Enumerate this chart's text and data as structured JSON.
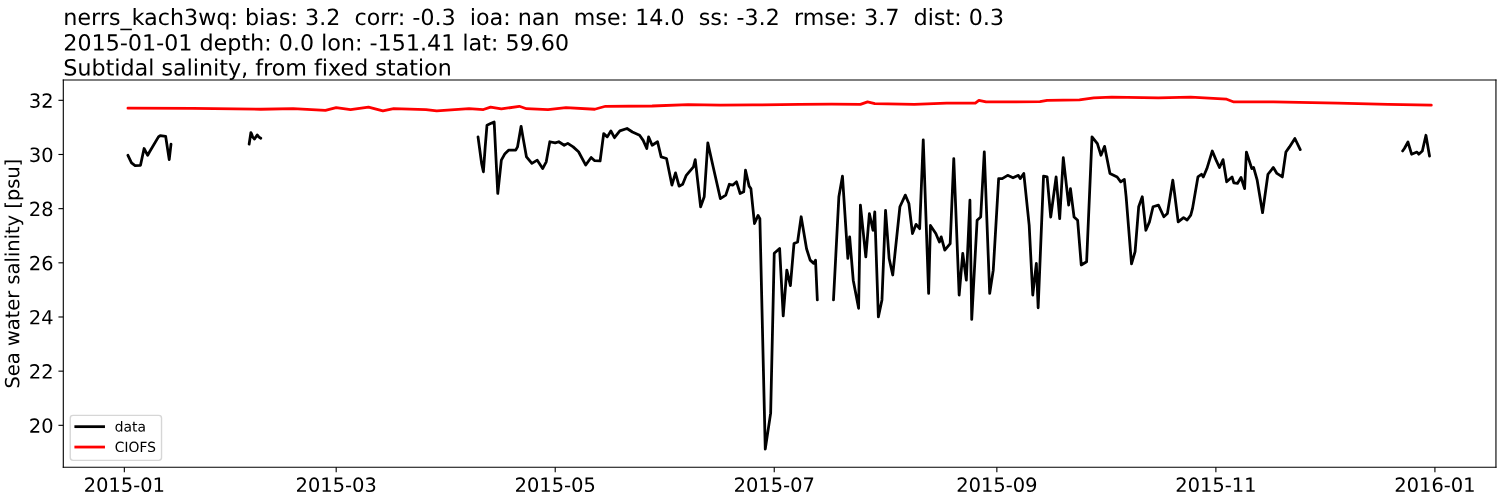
{
  "chart_data": {
    "type": "line",
    "title": "nerrs_kach3wq: bias: 3.2  corr: -0.3  ioa: nan  mse: 14.0  ss: -3.2  rmse: 3.7  dist: 0.3\n2015-01-01 depth: 0.0 lon: -151.41 lat: 59.60\nSubtidal salinity, from fixed station",
    "ylabel": "Sea water salinity [psu]",
    "xlim": [
      "2014-12-15",
      "2016-01-18"
    ],
    "xticks": [
      "2015-01",
      "2015-03",
      "2015-05",
      "2015-07",
      "2015-09",
      "2015-11",
      "2016-01"
    ],
    "ylim": [
      18.45,
      32.75
    ],
    "yticks": [
      20,
      22,
      24,
      26,
      28,
      30,
      32
    ],
    "legend": "bottom left",
    "series": [
      {
        "name": "data",
        "color": "#000000",
        "x": [
          "2015-01-02",
          "2015-01-03",
          "2015-01-04",
          "2015-01-05T12:00",
          "2015-01-06T12:00",
          "2015-01-07T12:00",
          "2015-01-08",
          "2015-01-10T12:00",
          "2015-01-11",
          "2015-01-12T12:00",
          "2015-01-13T12:00",
          "2015-01-14",
          "2015-01-25",
          "2015-02-04T18:00",
          "2015-02-05T06:00",
          "2015-02-05T12:00",
          "2015-02-05T18:00",
          "2015-02-06T06:00",
          "2015-02-07",
          "2015-02-07T12:00",
          "2015-02-08",
          "2015-03-01",
          "2015-04-09T12:00",
          "2015-04-10T12:00",
          "2015-04-11",
          "2015-04-11T12:00",
          "2015-04-12",
          "2015-04-13",
          "2015-04-14",
          "2015-04-15",
          "2015-04-16",
          "2015-04-17",
          "2015-04-18",
          "2015-04-20",
          "2015-04-20T12:00",
          "2015-04-21T12:00",
          "2015-04-22",
          "2015-04-23",
          "2015-04-24T12:00",
          "2015-04-26",
          "2015-04-27T12:00",
          "2015-04-28T12:00",
          "2015-04-29T12:00",
          "2015-05-01",
          "2015-05-02",
          "2015-05-03T12:00",
          "2015-05-04T12:00",
          "2015-05-06",
          "2015-05-07T12:00",
          "2015-05-09T12:00",
          "2015-05-11",
          "2015-05-12",
          "2015-05-13T12:00",
          "2015-05-14T12:00",
          "2015-05-15T12:00",
          "2015-05-16T12:00",
          "2015-05-17T12:00",
          "2015-05-19",
          "2015-05-21",
          "2015-05-22T12:00",
          "2015-05-24T12:00",
          "2015-05-25T12:00",
          "2015-05-26T12:00",
          "2015-05-27",
          "2015-05-28",
          "2015-05-29T12:00",
          "2015-05-30T12:00",
          "2015-06-01",
          "2015-06-02T12:00",
          "2015-06-03T12:00",
          "2015-06-04T12:00",
          "2015-06-05T12:00",
          "2015-06-06T12:00",
          "2015-06-08T12:00",
          "2015-06-09",
          "2015-06-10T12:00",
          "2015-06-11T12:00",
          "2015-06-12T12:00",
          "2015-06-14",
          "2015-06-16",
          "2015-06-17T12:00",
          "2015-06-18T12:00",
          "2015-06-19T12:00",
          "2015-06-20T12:00",
          "2015-06-21T12:00",
          "2015-06-22T12:00",
          "2015-06-23",
          "2015-06-24",
          "2015-06-24T12:00",
          "2015-06-25T12:00",
          "2015-06-26T12:00",
          "2015-06-27",
          "2015-06-28T12:00",
          "2015-06-30",
          "2015-07-01",
          "2015-07-02T12:00",
          "2015-07-03T12:00",
          "2015-07-04T12:00",
          "2015-07-05T12:00",
          "2015-07-06T12:00",
          "2015-07-07T12:00",
          "2015-07-08T12:00",
          "2015-07-10",
          "2015-07-11",
          "2015-07-12",
          "2015-07-12T12:00",
          "2015-07-13",
          "2015-07-15",
          "2015-07-17T12:00",
          "2015-07-19",
          "2015-07-20",
          "2015-07-21T12:00",
          "2015-07-22",
          "2015-07-23",
          "2015-07-24T12:00",
          "2015-07-25",
          "2015-07-26T12:00",
          "2015-07-27T12:00",
          "2015-07-28T12:00",
          "2015-07-29",
          "2015-07-30",
          "2015-07-31",
          "2015-08-01",
          "2015-08-02",
          "2015-08-03",
          "2015-08-05",
          "2015-08-06T12:00",
          "2015-08-07T12:00",
          "2015-08-08T12:00",
          "2015-08-09T12:00",
          "2015-08-10T12:00",
          "2015-08-11T12:00",
          "2015-08-13",
          "2015-08-13T12:00",
          "2015-08-15",
          "2015-08-16",
          "2015-08-16T12:00",
          "2015-08-17T12:00",
          "2015-08-19",
          "2015-08-20",
          "2015-08-21T12:00",
          "2015-08-22T12:00",
          "2015-08-23T12:00",
          "2015-08-24T12:00",
          "2015-08-25",
          "2015-08-26T12:00",
          "2015-08-27T12:00",
          "2015-08-28T12:00",
          "2015-08-30",
          "2015-08-31",
          "2015-09-01T12:00",
          "2015-09-02T12:00",
          "2015-09-04",
          "2015-09-05T12:00",
          "2015-09-07",
          "2015-09-07T12:00",
          "2015-09-08T12:00",
          "2015-09-10",
          "2015-09-11",
          "2015-09-12",
          "2015-09-12T12:00",
          "2015-09-14",
          "2015-09-15",
          "2015-09-16",
          "2015-09-17T12:00",
          "2015-09-18T12:00",
          "2015-09-19T12:00",
          "2015-09-21",
          "2015-09-21T12:00",
          "2015-09-22T12:00",
          "2015-09-23T12:00",
          "2015-09-24T12:00",
          "2015-09-26",
          "2015-09-27T12:00",
          "2015-09-29",
          "2015-09-30",
          "2015-10-01",
          "2015-10-02T12:00",
          "2015-10-04T12:00",
          "2015-10-05T12:00",
          "2015-10-06T12:00",
          "2015-10-07",
          "2015-10-08T12:00",
          "2015-10-09T12:00",
          "2015-10-10T12:00",
          "2015-10-11T12:00",
          "2015-10-12T12:00",
          "2015-10-13T12:00",
          "2015-10-14T12:00",
          "2015-10-16",
          "2015-10-17T12:00",
          "2015-10-18T12:00",
          "2015-10-20",
          "2015-10-20T12:00",
          "2015-10-21T12:00",
          "2015-10-23",
          "2015-10-24",
          "2015-10-25",
          "2015-10-25T12:00",
          "2015-10-27",
          "2015-10-28",
          "2015-10-28T12:00",
          "2015-10-29T12:00",
          "2015-10-31",
          "2015-11-01",
          "2015-11-02",
          "2015-11-03",
          "2015-11-04",
          "2015-11-05T12:00",
          "2015-11-06",
          "2015-11-07",
          "2015-11-08",
          "2015-11-09",
          "2015-11-09T12:00",
          "2015-11-11",
          "2015-11-11T12:00",
          "2015-11-12T12:00",
          "2015-11-14",
          "2015-11-15T12:00",
          "2015-11-17",
          "2015-11-18",
          "2015-11-19T12:00",
          "2015-11-20T12:00",
          "2015-11-21T12:00",
          "2015-11-23",
          "2015-11-24T12:00",
          "2015-12-10",
          "2015-12-23",
          "2015-12-23T12:00",
          "2015-12-24T12:00",
          "2015-12-25T12:00",
          "2015-12-27",
          "2015-12-27T12:00",
          "2015-12-28T12:00",
          "2015-12-29T12:00",
          "2015-12-30T12:00"
        ],
        "values": [
          29.97,
          29.69,
          29.59,
          29.6,
          30.22,
          29.97,
          30.09,
          30.65,
          30.7,
          30.67,
          29.81,
          30.38,
          null,
          30.38,
          30.81,
          30.74,
          30.64,
          30.57,
          30.72,
          30.64,
          30.6,
          null,
          30.65,
          29.67,
          29.36,
          30.28,
          31.08,
          31.14,
          31.2,
          28.56,
          29.79,
          30.03,
          30.16,
          30.16,
          30.28,
          31.04,
          30.65,
          29.91,
          29.67,
          29.79,
          29.48,
          29.73,
          30.47,
          30.43,
          30.47,
          30.34,
          30.41,
          30.28,
          30.1,
          29.61,
          29.89,
          29.77,
          29.76,
          30.77,
          30.65,
          30.87,
          30.62,
          30.87,
          30.96,
          30.83,
          30.71,
          30.52,
          30.22,
          30.65,
          30.34,
          30.47,
          29.91,
          29.85,
          28.87,
          29.32,
          28.83,
          28.9,
          29.23,
          29.54,
          29.81,
          28.07,
          28.44,
          30.43,
          29.54,
          28.37,
          28.5,
          28.9,
          28.87,
          28.99,
          28.56,
          28.62,
          29.42,
          28.83,
          28.74,
          27.45,
          27.75,
          27.63,
          19.12,
          20.45,
          26.35,
          26.53,
          24.04,
          25.73,
          25.16,
          26.71,
          26.77,
          27.7,
          26.52,
          26.1,
          25.98,
          26.1,
          24.63,
          null,
          24.63,
          28.44,
          29.2,
          26.16,
          26.96,
          25.36,
          24.32,
          28.13,
          26.22,
          27.82,
          27.2,
          27.88,
          24.0,
          24.63,
          27.94,
          26.16,
          25.55,
          28.07,
          28.5,
          28.19,
          27.08,
          27.42,
          27.26,
          30.54,
          24.87,
          27.38,
          27.08,
          26.77,
          26.96,
          26.47,
          26.71,
          29.85,
          24.81,
          26.35,
          25.36,
          28.31,
          23.91,
          27.57,
          27.69,
          30.1,
          24.87,
          25.73,
          29.11,
          29.11,
          29.23,
          29.14,
          29.23,
          29.11,
          29.3,
          27.39,
          24.81,
          25.98,
          24.34,
          29.2,
          29.17,
          27.69,
          29.17,
          27.63,
          29.88,
          28.13,
          28.74,
          27.69,
          27.57,
          25.92,
          26.04,
          30.65,
          30.4,
          29.97,
          30.3,
          29.3,
          29.17,
          28.99,
          29.08,
          28.44,
          25.96,
          26.41,
          28.07,
          28.44,
          27.2,
          27.51,
          28.07,
          28.13,
          27.7,
          27.82,
          29.05,
          28.56,
          27.51,
          27.67,
          27.58,
          27.76,
          28.01,
          29.17,
          29.27,
          29.17,
          29.48,
          30.13,
          29.81,
          29.52,
          29.81,
          28.99,
          29.17,
          28.95,
          28.93,
          29.15,
          28.74,
          30.09,
          29.48,
          29.52,
          29.05,
          27.85,
          29.27,
          29.52,
          29.3,
          29.17,
          30.09,
          30.28,
          30.59,
          30.18,
          null,
          30.13,
          30.22,
          30.46,
          30.01,
          30.09,
          30.01,
          30.13,
          30.71,
          29.94
        ]
      },
      {
        "name": "CIOFS",
        "color": "#ff0000",
        "x": [
          "2015-01-02",
          "2015-01-20",
          "2015-02-08",
          "2015-02-17",
          "2015-02-26",
          "2015-03-01",
          "2015-03-05",
          "2015-03-10",
          "2015-03-14",
          "2015-03-17",
          "2015-03-26",
          "2015-03-29",
          "2015-04-03",
          "2015-04-07",
          "2015-04-11",
          "2015-04-13",
          "2015-04-16",
          "2015-04-21",
          "2015-04-23",
          "2015-04-29",
          "2015-05-04",
          "2015-05-12",
          "2015-05-15",
          "2015-05-28",
          "2015-06-07",
          "2015-06-16",
          "2015-06-25",
          "2015-07-08",
          "2015-07-17",
          "2015-07-25",
          "2015-07-27",
          "2015-07-29",
          "2015-08-09",
          "2015-08-18",
          "2015-08-26",
          "2015-08-27",
          "2015-08-29",
          "2015-09-13",
          "2015-09-15",
          "2015-09-24",
          "2015-09-28",
          "2015-10-03",
          "2015-10-16",
          "2015-10-25",
          "2015-11-04",
          "2015-11-06",
          "2015-11-17",
          "2015-12-05",
          "2015-12-19",
          "2015-12-31"
        ],
        "values": [
          31.71,
          31.7,
          31.67,
          31.69,
          31.63,
          31.73,
          31.66,
          31.75,
          31.61,
          31.69,
          31.66,
          31.61,
          31.66,
          31.69,
          31.66,
          31.75,
          31.68,
          31.78,
          31.69,
          31.66,
          31.73,
          31.67,
          31.78,
          31.79,
          31.84,
          31.82,
          31.83,
          31.85,
          31.86,
          31.85,
          31.94,
          31.88,
          31.85,
          31.9,
          31.9,
          32.0,
          31.94,
          31.95,
          32.0,
          32.02,
          32.09,
          32.12,
          32.09,
          32.12,
          32.04,
          31.94,
          31.94,
          31.9,
          31.85,
          31.82
        ]
      }
    ]
  }
}
